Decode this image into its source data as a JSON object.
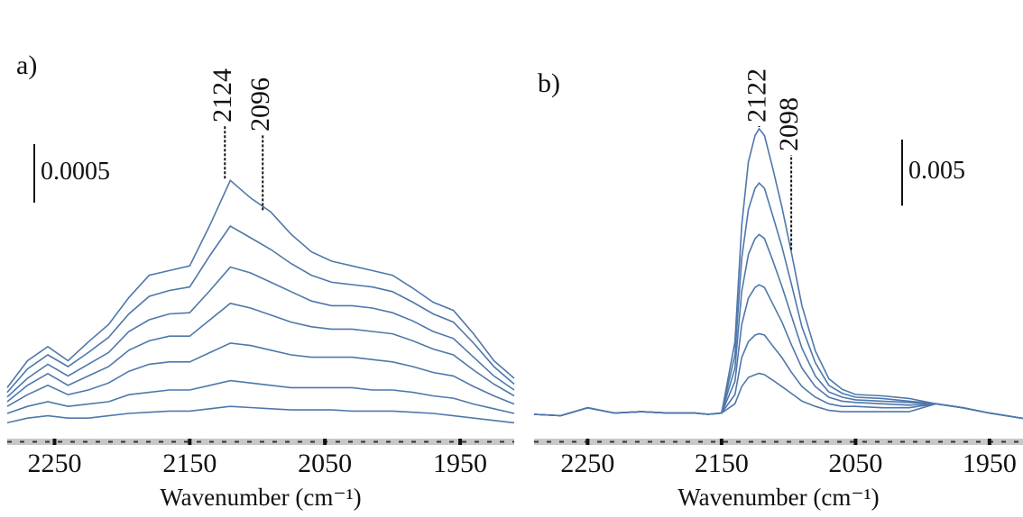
{
  "chart_data": [
    {
      "type": "line",
      "panel_label": "a)",
      "xlabel": "Wavenumber (cm⁻¹)",
      "color": "#4f77ab",
      "xlim": [
        2285,
        1910
      ],
      "ylim": [
        0,
        0.0035
      ],
      "xticks": [
        2250,
        2150,
        2050,
        1950
      ],
      "scale_bar": 0.0005,
      "peak_marks": [
        2124,
        2096
      ],
      "x": [
        2285,
        2270,
        2255,
        2240,
        2225,
        2210,
        2195,
        2180,
        2165,
        2150,
        2135,
        2120,
        2105,
        2090,
        2075,
        2060,
        2045,
        2030,
        2015,
        2000,
        1985,
        1970,
        1955,
        1940,
        1925,
        1910
      ],
      "series": [
        {
          "values": [
            0.00042,
            0.00065,
            0.00077,
            0.00065,
            0.00081,
            0.00096,
            0.00119,
            0.00138,
            0.00142,
            0.00146,
            0.00181,
            0.00219,
            0.00204,
            0.00192,
            0.00173,
            0.00158,
            0.0015,
            0.00146,
            0.00142,
            0.00138,
            0.00127,
            0.00115,
            0.00108,
            0.00088,
            0.00065,
            0.0005
          ]
        },
        {
          "values": [
            0.00038,
            0.00058,
            0.0007,
            0.0006,
            0.00072,
            0.00085,
            0.00105,
            0.0012,
            0.00125,
            0.00128,
            0.00155,
            0.0018,
            0.0017,
            0.0016,
            0.00148,
            0.00138,
            0.00132,
            0.0013,
            0.00128,
            0.00124,
            0.00115,
            0.00105,
            0.00098,
            0.0008,
            0.0006,
            0.00045
          ]
        },
        {
          "values": [
            0.00034,
            0.0005,
            0.00062,
            0.00052,
            0.00062,
            0.00072,
            0.0009,
            0.001,
            0.00105,
            0.00106,
            0.00125,
            0.00145,
            0.0014,
            0.00132,
            0.00124,
            0.00116,
            0.00112,
            0.00112,
            0.0011,
            0.00106,
            0.00099,
            0.0009,
            0.00084,
            0.00068,
            0.00052,
            0.0004
          ]
        },
        {
          "values": [
            0.0003,
            0.00044,
            0.00054,
            0.00044,
            0.00052,
            0.0006,
            0.00074,
            0.00082,
            0.00086,
            0.00086,
            0.001,
            0.00114,
            0.0011,
            0.00104,
            0.00098,
            0.00094,
            0.00092,
            0.00092,
            0.0009,
            0.00088,
            0.00082,
            0.00075,
            0.0007,
            0.00057,
            0.00045,
            0.00035
          ]
        },
        {
          "values": [
            0.00026,
            0.00036,
            0.00044,
            0.00036,
            0.0004,
            0.00046,
            0.00056,
            0.00062,
            0.00064,
            0.00064,
            0.00072,
            0.0008,
            0.00078,
            0.00074,
            0.0007,
            0.00068,
            0.00068,
            0.00068,
            0.00066,
            0.00064,
            0.0006,
            0.00055,
            0.00052,
            0.00043,
            0.00035,
            0.00028
          ]
        },
        {
          "values": [
            0.0002,
            0.00026,
            0.0003,
            0.00026,
            0.00028,
            0.0003,
            0.00036,
            0.00038,
            0.0004,
            0.0004,
            0.00044,
            0.00048,
            0.00046,
            0.00044,
            0.00042,
            0.00042,
            0.00042,
            0.00042,
            0.0004,
            0.0004,
            0.00038,
            0.00035,
            0.00033,
            0.00028,
            0.00024,
            0.0002
          ]
        },
        {
          "values": [
            0.00012,
            0.00016,
            0.00018,
            0.00016,
            0.00016,
            0.00018,
            0.0002,
            0.00021,
            0.00022,
            0.00022,
            0.00024,
            0.00026,
            0.00025,
            0.00024,
            0.00023,
            0.00023,
            0.00023,
            0.00022,
            0.00022,
            0.00022,
            0.00021,
            0.0002,
            0.00018,
            0.00016,
            0.00014,
            0.00012
          ]
        }
      ]
    },
    {
      "type": "line",
      "panel_label": "b)",
      "xlabel": "Wavenumber (cm⁻¹)",
      "color": "#4f77ab",
      "xlim": [
        2290,
        1925
      ],
      "ylim": [
        0,
        0.031
      ],
      "xticks": [
        2250,
        2150,
        2050,
        1950
      ],
      "scale_bar": 0.005,
      "peak_marks": [
        2122,
        2098
      ],
      "x": [
        2290,
        2270,
        2250,
        2230,
        2210,
        2190,
        2170,
        2160,
        2150,
        2140,
        2135,
        2130,
        2125,
        2122,
        2118,
        2112,
        2105,
        2098,
        2090,
        2080,
        2070,
        2060,
        2050,
        2030,
        2010,
        1990,
        1970,
        1950,
        1925
      ],
      "series": [
        {
          "values": [
            0.0017,
            0.0016,
            0.0022,
            0.0018,
            0.0019,
            0.0018,
            0.0018,
            0.0017,
            0.0018,
            0.0072,
            0.016,
            0.0208,
            0.0228,
            0.0233,
            0.0228,
            0.0204,
            0.0174,
            0.014,
            0.0099,
            0.0065,
            0.0044,
            0.0036,
            0.0032,
            0.0031,
            0.0029,
            0.0025,
            0.0022,
            0.0018,
            0.0014
          ]
        },
        {
          "values": [
            0.0017,
            0.0016,
            0.0022,
            0.0018,
            0.0019,
            0.0018,
            0.0018,
            0.0017,
            0.0018,
            0.0062,
            0.0135,
            0.0172,
            0.0188,
            0.0192,
            0.0188,
            0.0168,
            0.0144,
            0.0116,
            0.0083,
            0.0056,
            0.0039,
            0.0033,
            0.003,
            0.0029,
            0.0027,
            0.0025,
            0.0022,
            0.0018,
            0.0014
          ]
        },
        {
          "values": [
            0.0017,
            0.0016,
            0.0022,
            0.0018,
            0.0019,
            0.0018,
            0.0018,
            0.0017,
            0.0018,
            0.0052,
            0.011,
            0.0138,
            0.015,
            0.0153,
            0.015,
            0.0134,
            0.0114,
            0.0092,
            0.0067,
            0.0046,
            0.0034,
            0.003,
            0.0028,
            0.0027,
            0.0026,
            0.0025,
            0.0022,
            0.0018,
            0.0014
          ]
        },
        {
          "values": [
            0.0017,
            0.0016,
            0.0022,
            0.0018,
            0.0019,
            0.0018,
            0.0018,
            0.0017,
            0.0018,
            0.0042,
            0.0085,
            0.0105,
            0.0113,
            0.0115,
            0.0113,
            0.0101,
            0.0087,
            0.007,
            0.0052,
            0.0038,
            0.003,
            0.0027,
            0.0026,
            0.0025,
            0.0024,
            0.0025,
            0.0022,
            0.0018,
            0.0014
          ]
        },
        {
          "values": [
            0.0017,
            0.0016,
            0.0022,
            0.0018,
            0.0019,
            0.0018,
            0.0018,
            0.0017,
            0.0018,
            0.0032,
            0.006,
            0.0072,
            0.0077,
            0.0078,
            0.0077,
            0.0069,
            0.006,
            0.0049,
            0.0038,
            0.003,
            0.0025,
            0.0023,
            0.0023,
            0.0022,
            0.0022,
            0.0025,
            0.0022,
            0.0018,
            0.0014
          ]
        },
        {
          "values": [
            0.0017,
            0.0016,
            0.0022,
            0.0018,
            0.0019,
            0.0018,
            0.0018,
            0.0017,
            0.0018,
            0.0025,
            0.0038,
            0.0045,
            0.0047,
            0.0048,
            0.0047,
            0.0043,
            0.0038,
            0.0033,
            0.0027,
            0.0023,
            0.002,
            0.0019,
            0.0019,
            0.0019,
            0.0019,
            0.0025,
            0.0022,
            0.0018,
            0.0014
          ]
        }
      ]
    }
  ]
}
